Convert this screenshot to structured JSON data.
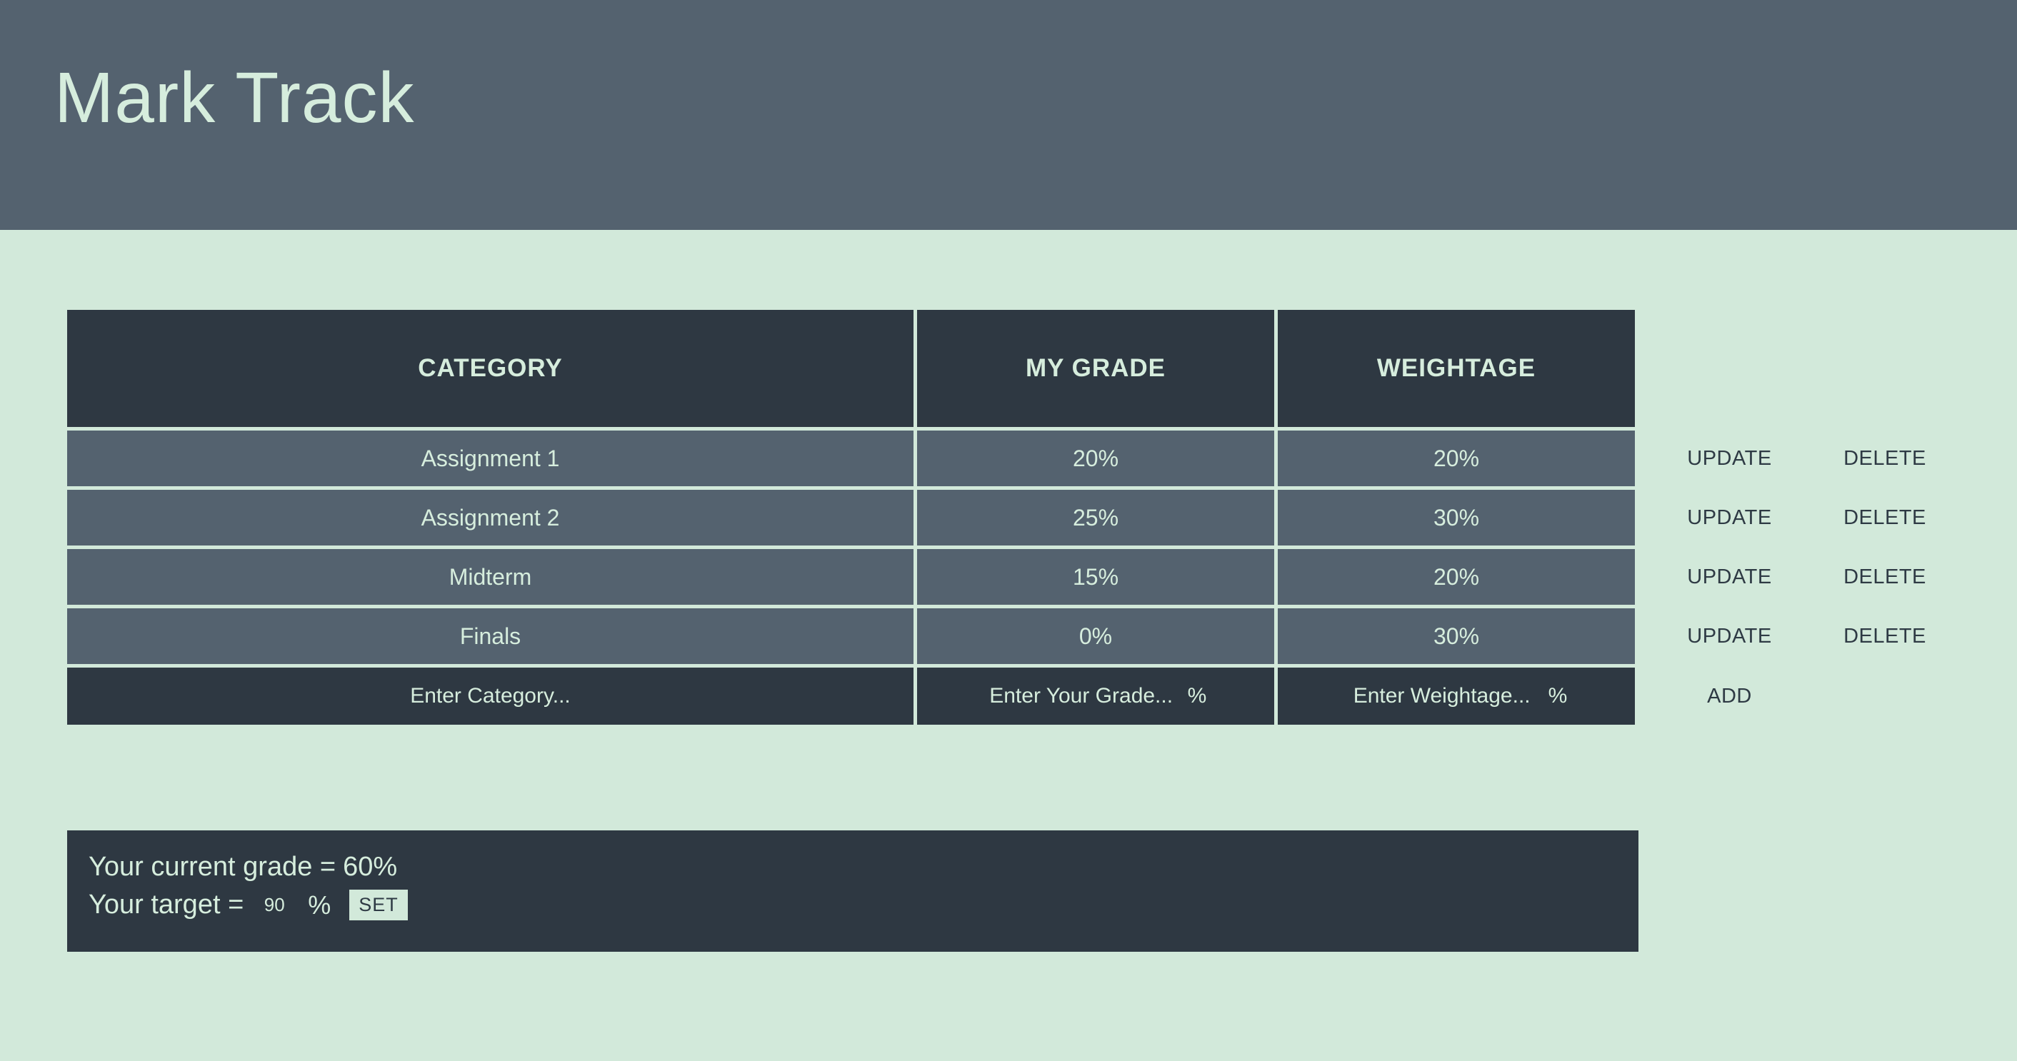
{
  "app": {
    "title": "Mark Track"
  },
  "colors": {
    "background": "#d2e9da",
    "top_bar": "#54626f",
    "row_background": "#54626f",
    "dark_panel": "#2e3842",
    "light_text": "#d6eddd",
    "dark_text": "#2e3a44"
  },
  "table": {
    "headers": {
      "category": "CATEGORY",
      "grade": "MY GRADE",
      "weightage": "WEIGHTAGE"
    },
    "rows": [
      {
        "category": "Assignment 1",
        "grade": "20%",
        "weightage": "20%"
      },
      {
        "category": "Assignment 2",
        "grade": "25%",
        "weightage": "30%"
      },
      {
        "category": "Midterm",
        "grade": "15%",
        "weightage": "20%"
      },
      {
        "category": "Finals",
        "grade": "0%",
        "weightage": "30%"
      }
    ],
    "actions": {
      "update": "UPDATE",
      "delete": "DELETE",
      "add": "ADD"
    },
    "add_row": {
      "category_placeholder": "Enter Category...",
      "grade_placeholder": "Enter Your Grade...",
      "weightage_placeholder": "Enter Weightage...",
      "percent_suffix": "%"
    }
  },
  "summary": {
    "current_grade_label": "Your current grade =",
    "current_grade_value": "60%",
    "target_label": "Your target =",
    "target_value": "90",
    "percent_suffix": "%",
    "set_button": "SET"
  }
}
